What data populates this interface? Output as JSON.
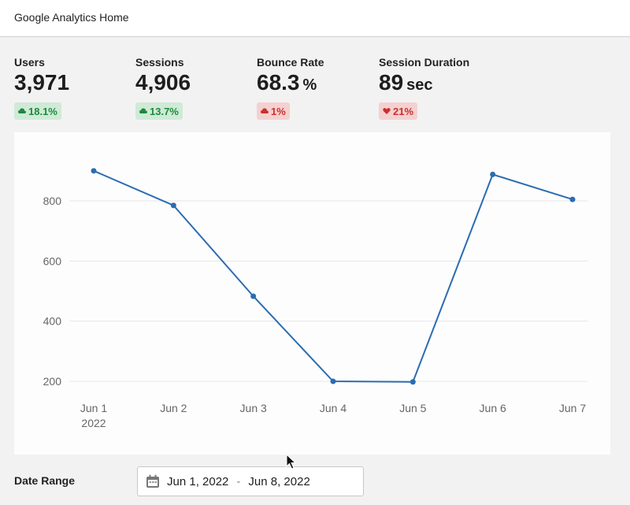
{
  "header": {
    "title": "Google Analytics Home"
  },
  "metrics": [
    {
      "label": "Users",
      "value": "3,971",
      "unit": "",
      "change": "18.1%",
      "direction": "up",
      "icon": "cloud-up-icon"
    },
    {
      "label": "Sessions",
      "value": "4,906",
      "unit": "",
      "change": "13.7%",
      "direction": "up",
      "icon": "cloud-up-icon"
    },
    {
      "label": "Bounce Rate",
      "value": "68.3",
      "unit": "%",
      "change": "1%",
      "direction": "down",
      "icon": "cloud-down-icon"
    },
    {
      "label": "Session Duration",
      "value": "89",
      "unit": "sec",
      "change": "21%",
      "direction": "down",
      "icon": "heart-down-icon"
    }
  ],
  "colors": {
    "up_bg": "#cfead6",
    "up_text": "#1d8a3c",
    "down_bg": "#f5d0d0",
    "down_text": "#c8302e",
    "line": "#2b6cb0"
  },
  "chart_data": {
    "type": "line",
    "x": [
      "Jun 1",
      "Jun 2",
      "Jun 3",
      "Jun 4",
      "Jun 5",
      "Jun 6",
      "Jun 7"
    ],
    "x_sublabel": "2022",
    "series": [
      {
        "values": [
          900,
          785,
          483,
          200,
          198,
          888,
          805
        ]
      }
    ],
    "yticks": [
      200,
      400,
      600,
      800
    ],
    "ylim": [
      150,
      1000
    ],
    "grid": true,
    "legend": "none"
  },
  "date_range": {
    "label": "Date Range",
    "start": "Jun 1, 2022",
    "separator": "-",
    "end": "Jun 8, 2022",
    "icon": "calendar-icon"
  }
}
